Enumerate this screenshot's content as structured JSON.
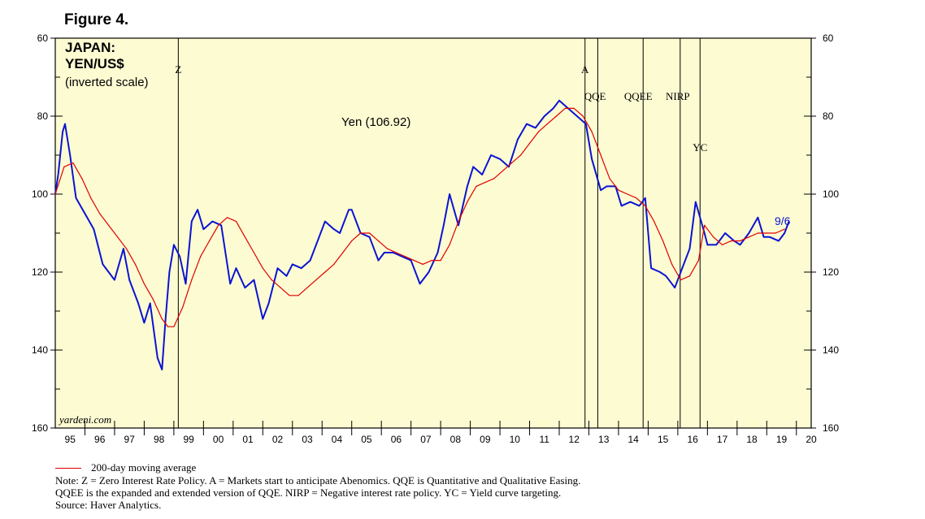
{
  "figure_label": "Figure 4.",
  "chart_data": {
    "type": "line",
    "title_lines": [
      "JAPAN:",
      "YEN/US$"
    ],
    "subtitle": "(inverted scale)",
    "y_inverted": true,
    "ylim": [
      60,
      160
    ],
    "y_ticks": [
      60,
      80,
      100,
      120,
      140,
      160
    ],
    "y_tick_labels": [
      "60",
      "80",
      "100",
      "120",
      "140",
      "160"
    ],
    "x_range": [
      1995,
      2020.5
    ],
    "x_labels": [
      "95",
      "96",
      "97",
      "98",
      "99",
      "00",
      "01",
      "02",
      "03",
      "04",
      "05",
      "06",
      "07",
      "08",
      "09",
      "10",
      "11",
      "12",
      "13",
      "14",
      "15",
      "16",
      "17",
      "18",
      "19",
      "20"
    ],
    "series_label": "Yen (106.92)",
    "end_label": "9/6",
    "watermark": "yardeni.com",
    "events": [
      {
        "label": "Z",
        "x": 1999.15
      },
      {
        "label": "A",
        "x": 2012.87
      },
      {
        "label": "QQE",
        "x": 2013.3
      },
      {
        "label": "QQEE",
        "x": 2014.83
      },
      {
        "label": "NIRP",
        "x": 2016.08
      },
      {
        "label": "YC",
        "x": 2016.75
      }
    ],
    "series": [
      {
        "name": "Yen",
        "color": "#0a14d2",
        "x": [
          1995.0,
          1995.1,
          1995.25,
          1995.33,
          1995.5,
          1995.7,
          1996.0,
          1996.3,
          1996.6,
          1997.0,
          1997.3,
          1997.5,
          1997.8,
          1998.0,
          1998.2,
          1998.45,
          1998.6,
          1998.72,
          1998.85,
          1999.0,
          1999.2,
          1999.4,
          1999.6,
          1999.8,
          2000.0,
          2000.3,
          2000.6,
          2000.9,
          2001.1,
          2001.4,
          2001.7,
          2002.0,
          2002.2,
          2002.5,
          2002.8,
          2003.0,
          2003.3,
          2003.6,
          2003.9,
          2004.1,
          2004.4,
          2004.6,
          2004.9,
          2005.0,
          2005.3,
          2005.6,
          2005.9,
          2006.1,
          2006.4,
          2006.7,
          2007.0,
          2007.3,
          2007.6,
          2007.9,
          2008.1,
          2008.3,
          2008.6,
          2008.9,
          2009.1,
          2009.4,
          2009.7,
          2010.0,
          2010.3,
          2010.6,
          2010.9,
          2011.2,
          2011.5,
          2011.8,
          2012.0,
          2012.3,
          2012.6,
          2012.9,
          2013.1,
          2013.4,
          2013.6,
          2013.9,
          2014.1,
          2014.4,
          2014.7,
          2014.9,
          2015.1,
          2015.4,
          2015.6,
          2015.9,
          2016.1,
          2016.4,
          2016.6,
          2016.9,
          2017.0,
          2017.3,
          2017.6,
          2017.9,
          2018.1,
          2018.4,
          2018.7,
          2018.9,
          2019.1,
          2019.4,
          2019.6,
          2019.75
        ],
        "values": [
          100,
          95,
          84,
          82,
          90,
          101,
          105,
          109,
          118,
          122,
          114,
          122,
          128,
          133,
          128,
          142,
          145,
          132,
          120,
          113,
          116,
          123,
          107,
          104,
          109,
          107,
          108,
          123,
          119,
          124,
          122,
          132,
          128,
          119,
          121,
          118,
          119,
          117,
          111,
          107,
          109,
          110,
          104,
          104,
          110,
          111,
          117,
          115,
          115,
          116,
          117,
          123,
          120,
          115,
          108,
          100,
          108,
          98,
          93,
          95,
          90,
          91,
          93,
          86,
          82,
          83,
          80,
          78,
          76,
          78,
          80,
          82,
          91,
          99,
          98,
          98,
          103,
          102,
          103,
          101,
          119,
          120,
          121,
          124,
          120,
          114,
          102,
          110,
          113,
          113,
          110,
          112,
          113,
          110,
          106,
          111,
          111,
          112,
          110,
          107
        ]
      },
      {
        "name": "200-day moving average",
        "color": "#e10000",
        "x": [
          1995.0,
          1995.3,
          1995.6,
          1995.9,
          1996.2,
          1996.5,
          1996.8,
          1997.1,
          1997.4,
          1997.7,
          1998.0,
          1998.3,
          1998.6,
          1998.8,
          1999.0,
          1999.3,
          1999.6,
          1999.9,
          2000.2,
          2000.5,
          2000.8,
          2001.1,
          2001.4,
          2001.7,
          2002.0,
          2002.3,
          2002.6,
          2002.9,
          2003.2,
          2003.5,
          2003.8,
          2004.1,
          2004.4,
          2004.7,
          2005.0,
          2005.3,
          2005.6,
          2005.9,
          2006.2,
          2006.5,
          2006.8,
          2007.1,
          2007.4,
          2007.7,
          2008.0,
          2008.3,
          2008.6,
          2008.9,
          2009.2,
          2009.5,
          2009.8,
          2010.1,
          2010.4,
          2010.7,
          2011.0,
          2011.3,
          2011.6,
          2011.9,
          2012.2,
          2012.5,
          2012.8,
          2013.1,
          2013.4,
          2013.7,
          2014.0,
          2014.3,
          2014.6,
          2014.9,
          2015.2,
          2015.5,
          2015.8,
          2016.1,
          2016.4,
          2016.7,
          2016.9,
          2017.2,
          2017.5,
          2017.8,
          2018.1,
          2018.4,
          2018.7,
          2019.0,
          2019.3,
          2019.6
        ],
        "values": [
          100,
          93,
          92,
          96,
          101,
          105,
          108,
          111,
          114,
          118,
          123,
          127,
          132,
          134,
          134,
          129,
          122,
          116,
          112,
          108,
          106,
          107,
          111,
          115,
          119,
          122,
          124,
          126,
          126,
          124,
          122,
          120,
          118,
          115,
          112,
          110,
          110,
          112,
          114,
          115,
          116,
          117,
          118,
          117,
          117,
          113,
          107,
          102,
          98,
          97,
          96,
          94,
          92,
          90,
          87,
          84,
          82,
          80,
          78,
          78,
          80,
          84,
          90,
          96,
          99,
          100,
          101,
          103,
          107,
          112,
          118,
          122,
          121,
          117,
          108,
          111,
          113,
          112,
          112,
          111,
          110,
          110,
          110,
          109
        ]
      }
    ]
  },
  "notes": {
    "legend": "200-day moving average",
    "line1": "Note: Z = Zero Interest Rate Policy. A = Markets start to anticipate Abenomics. QQE is Quantitative and Qualitative Easing.",
    "line2": "QQEE is the expanded and extended version of QQE. NIRP = Negative interest rate policy. YC = Yield curve targeting.",
    "source": "Source: Haver Analytics."
  }
}
